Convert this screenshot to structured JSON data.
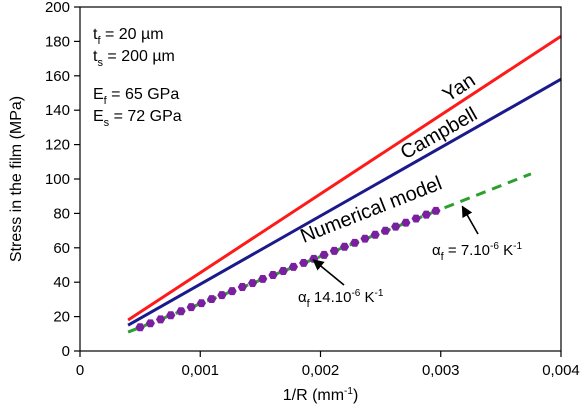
{
  "chart_data": {
    "type": "line",
    "xlabel": "1/R (mm⁻¹)",
    "ylabel": "Stress in the film (MPa)",
    "xlim": [
      0,
      0.004
    ],
    "ylim": [
      0,
      200
    ],
    "grid": false,
    "x_ticks": [
      {
        "value": 0,
        "label": "0"
      },
      {
        "value": 0.001,
        "label": "0,001"
      },
      {
        "value": 0.002,
        "label": "0,002"
      },
      {
        "value": 0.003,
        "label": "0,003"
      },
      {
        "value": 0.004,
        "label": "0,004"
      }
    ],
    "y_ticks": [
      0,
      20,
      40,
      60,
      80,
      100,
      120,
      140,
      160,
      180,
      200
    ],
    "series": [
      {
        "name": "Yan",
        "color": "#ff1a1a",
        "style": "solid",
        "x": [
          0.0004,
          0.004
        ],
        "y": [
          18,
          183
        ]
      },
      {
        "name": "Campbell",
        "color": "#1a1a8c",
        "style": "solid",
        "x": [
          0.0004,
          0.004
        ],
        "y": [
          15,
          158
        ]
      },
      {
        "name": "Numerical model",
        "color": "#2e9e2e",
        "style": "dashed",
        "x": [
          0.0004,
          0.00375
        ],
        "y": [
          11,
          103
        ]
      },
      {
        "color": "#7a1fa0",
        "style": "markers",
        "x": [
          0.0005,
          0.000585,
          0.00067,
          0.000755,
          0.00084,
          0.000925,
          0.00101,
          0.001095,
          0.00118,
          0.001265,
          0.00135,
          0.001435,
          0.00152,
          0.001605,
          0.00169,
          0.001775,
          0.00186,
          0.001945,
          0.00203,
          0.002115,
          0.0022,
          0.002285,
          0.00237,
          0.002455,
          0.00254,
          0.002625,
          0.00271,
          0.002795,
          0.00288,
          0.00296
        ],
        "y": [
          13.8,
          16.1,
          18.4,
          20.8,
          23.1,
          25.5,
          27.8,
          30.2,
          32.5,
          34.8,
          37.2,
          39.5,
          41.9,
          44.2,
          46.5,
          48.9,
          51.2,
          53.6,
          55.9,
          58.2,
          60.6,
          62.9,
          65.3,
          67.6,
          69.9,
          72.3,
          74.6,
          77.0,
          79.3,
          81.5
        ]
      }
    ],
    "parameters": [
      {
        "sym": "t",
        "sub": "f",
        "rest": " = 20 µm"
      },
      {
        "sym": "t",
        "sub": "s",
        "rest": " = 200 µm"
      },
      {
        "sym": "E",
        "sub": "f",
        "rest": " = 65 GPa"
      },
      {
        "sym": "E",
        "sub": "s",
        "rest": " = 72 GPa"
      }
    ],
    "annotations": [
      {
        "sym": "α",
        "sub": "f",
        "mid": " = 7.10",
        "sup1": "-6",
        "unit": " K",
        "sup2": "-1",
        "x": 0.00318,
        "y": 84
      },
      {
        "sym": "α",
        "sub": "f",
        "mid": " 14.10",
        "sup1": "-6",
        "unit": " K",
        "sup2": "-1",
        "x": 0.00194,
        "y": 53
      }
    ]
  }
}
